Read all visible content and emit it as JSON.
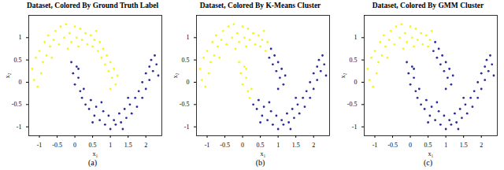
{
  "chart_data": [
    {
      "type": "scatter",
      "title": "Dataset, Colored By Ground Truth Label",
      "caption": "(a)",
      "x_label": "x₁",
      "y_label": "x₂",
      "xlim": [
        -1.3,
        2.45
      ],
      "xticks": [
        -1,
        -0.5,
        0,
        0.5,
        1,
        1.5,
        2
      ],
      "ylim": [
        -1.2,
        1.5
      ],
      "yticks": [
        -1,
        -0.5,
        0,
        0.5,
        1
      ],
      "marker": "circle",
      "series": [
        {
          "color": "#f5f523",
          "x": [
            -1.15,
            -1.05,
            -1.2,
            -0.95,
            -1.1,
            -0.9,
            -1.0,
            -0.8,
            -0.85,
            -0.7,
            -0.75,
            -0.6,
            -0.55,
            -0.45,
            -0.4,
            -0.3,
            -0.25,
            -0.15,
            -0.1,
            0.0,
            0.05,
            0.15,
            0.2,
            0.3,
            0.35,
            0.45,
            0.5,
            0.55,
            0.65,
            0.7,
            0.75,
            0.8,
            0.85,
            0.9,
            0.95,
            1.0,
            1.05,
            1.1,
            1.15,
            1.2,
            -0.65,
            0.6,
            -0.2,
            0.1,
            1.0
          ],
          "y": [
            0.05,
            -0.1,
            0.3,
            0.2,
            0.55,
            0.45,
            0.7,
            0.6,
            0.9,
            0.8,
            1.05,
            0.95,
            1.15,
            0.85,
            1.25,
            1.0,
            1.3,
            1.1,
            0.9,
            1.25,
            1.0,
            1.2,
            0.95,
            1.1,
            0.85,
            1.05,
            0.8,
            0.95,
            0.7,
            0.9,
            0.55,
            0.75,
            0.4,
            0.6,
            0.25,
            0.45,
            0.1,
            0.3,
            -0.05,
            0.15,
            0.55,
            1.15,
            0.75,
            0.8,
            -0.15
          ]
        },
        {
          "color": "#2b2b9c",
          "x": [
            -0.1,
            0.05,
            -0.05,
            0.1,
            0.0,
            0.15,
            0.1,
            0.2,
            0.3,
            0.25,
            0.4,
            0.45,
            0.55,
            0.6,
            0.7,
            0.8,
            0.85,
            0.95,
            1.0,
            1.1,
            1.15,
            1.25,
            1.3,
            1.4,
            1.45,
            1.55,
            1.6,
            1.7,
            1.75,
            1.8,
            1.9,
            1.9,
            2.0,
            2.0,
            2.1,
            2.1,
            2.2,
            2.15,
            2.3,
            2.25,
            0.5,
            1.35,
            1.5,
            0.75,
            2.35
          ],
          "y": [
            0.45,
            0.35,
            0.2,
            0.1,
            -0.05,
            -0.2,
            0.3,
            -0.35,
            -0.5,
            -0.15,
            -0.6,
            -0.4,
            -0.75,
            -0.55,
            -0.85,
            -0.65,
            -0.95,
            -0.75,
            -1.05,
            -0.85,
            -0.95,
            -0.7,
            -0.9,
            -0.6,
            -0.8,
            -0.5,
            -0.7,
            -0.35,
            -0.55,
            -0.2,
            -0.35,
            0.0,
            -0.15,
            0.2,
            0.05,
            0.35,
            0.25,
            0.5,
            0.4,
            0.6,
            -0.9,
            -1.05,
            -0.35,
            -0.45,
            0.15
          ]
        }
      ]
    },
    {
      "type": "scatter",
      "title": "Dataset, Colored By K-Means Cluster",
      "caption": "(b)",
      "x_label": "x₁",
      "y_label": "x₂",
      "xlim": [
        -1.3,
        2.45
      ],
      "xticks": [
        -1,
        -0.5,
        0,
        0.5,
        1,
        1.5,
        2
      ],
      "ylim": [
        -1.2,
        1.5
      ],
      "yticks": [
        -1,
        -0.5,
        0,
        0.5,
        1
      ],
      "marker": "circle",
      "series": [
        {
          "color": "#f5f523",
          "x": [
            -1.15,
            -1.05,
            -1.2,
            -0.95,
            -1.1,
            -0.9,
            -1.0,
            -0.8,
            -0.85,
            -0.7,
            -0.75,
            -0.6,
            -0.55,
            -0.45,
            -0.4,
            -0.3,
            -0.25,
            -0.15,
            -0.1,
            0.0,
            0.05,
            0.15,
            0.2,
            0.3,
            0.35,
            0.45,
            0.5,
            0.55,
            0.65,
            0.7,
            -0.65,
            0.6,
            -0.2,
            0.1,
            -0.1,
            0.05,
            -0.05,
            0.1,
            0.0,
            0.15,
            0.1,
            0.2,
            0.25
          ],
          "y": [
            0.05,
            -0.1,
            0.3,
            0.2,
            0.55,
            0.45,
            0.7,
            0.6,
            0.9,
            0.8,
            1.05,
            0.95,
            1.15,
            0.85,
            1.25,
            1.0,
            1.3,
            1.1,
            0.9,
            1.25,
            1.0,
            1.2,
            0.95,
            1.1,
            0.85,
            1.05,
            0.8,
            0.95,
            0.7,
            0.9,
            0.55,
            1.15,
            0.75,
            0.8,
            0.45,
            0.35,
            0.2,
            0.1,
            -0.05,
            -0.2,
            0.3,
            -0.35,
            -0.15
          ]
        },
        {
          "color": "#2b2b9c",
          "x": [
            0.75,
            0.8,
            0.85,
            0.9,
            0.95,
            1.0,
            1.05,
            1.1,
            1.15,
            1.2,
            1.0,
            0.3,
            0.4,
            0.45,
            0.55,
            0.6,
            0.7,
            0.8,
            0.85,
            0.95,
            1.0,
            1.1,
            1.15,
            1.25,
            1.3,
            1.4,
            1.45,
            1.55,
            1.6,
            1.7,
            1.75,
            1.8,
            1.9,
            1.9,
            2.0,
            2.0,
            2.1,
            2.1,
            2.2,
            2.15,
            2.3,
            2.25,
            0.5,
            1.35,
            1.5,
            0.75,
            2.35
          ],
          "y": [
            0.55,
            0.75,
            0.4,
            0.6,
            0.25,
            0.45,
            0.1,
            0.3,
            -0.05,
            0.15,
            -0.15,
            -0.5,
            -0.6,
            -0.4,
            -0.75,
            -0.55,
            -0.85,
            -0.65,
            -0.95,
            -0.75,
            -1.05,
            -0.85,
            -0.95,
            -0.7,
            -0.9,
            -0.6,
            -0.8,
            -0.5,
            -0.7,
            -0.35,
            -0.55,
            -0.2,
            -0.35,
            0.0,
            -0.15,
            0.2,
            0.05,
            0.35,
            0.25,
            0.5,
            0.4,
            0.6,
            -0.9,
            -1.05,
            -0.35,
            -0.45,
            0.15
          ]
        }
      ]
    },
    {
      "type": "scatter",
      "title": "Dataset, Colored By GMM Cluster",
      "caption": "(c)",
      "x_label": "x₁",
      "y_label": "x₂",
      "xlim": [
        -1.3,
        2.45
      ],
      "xticks": [
        -1,
        -0.5,
        0,
        0.5,
        1,
        1.5,
        2
      ],
      "ylim": [
        -1.2,
        1.5
      ],
      "yticks": [
        -1,
        -0.5,
        0,
        0.5,
        1
      ],
      "marker": "circle",
      "series": [
        {
          "color": "#f5f523",
          "x": [
            -1.15,
            -1.05,
            -1.2,
            -0.95,
            -1.1,
            -0.9,
            -1.0,
            -0.8,
            -0.85,
            -0.7,
            -0.75,
            -0.6,
            -0.55,
            -0.45,
            -0.4,
            -0.3,
            -0.25,
            -0.15,
            -0.1,
            0.0,
            0.05,
            0.15,
            0.2,
            0.3,
            0.35,
            0.45,
            0.5,
            0.55,
            -0.65,
            0.6,
            -0.2,
            0.1
          ],
          "y": [
            0.05,
            -0.1,
            0.3,
            0.2,
            0.55,
            0.45,
            0.7,
            0.6,
            0.9,
            0.8,
            1.05,
            0.95,
            1.15,
            0.85,
            1.25,
            1.0,
            1.3,
            1.1,
            0.9,
            1.25,
            1.0,
            1.2,
            0.95,
            1.1,
            0.85,
            1.05,
            0.8,
            0.95,
            0.55,
            1.15,
            0.75,
            0.8
          ]
        },
        {
          "color": "#2b2b9c",
          "x": [
            0.65,
            0.7,
            0.75,
            0.8,
            0.85,
            0.9,
            0.95,
            1.0,
            1.05,
            1.1,
            1.15,
            1.2,
            1.0,
            -0.1,
            0.05,
            -0.05,
            0.1,
            0.0,
            0.15,
            0.1,
            0.2,
            0.3,
            0.25,
            0.4,
            0.45,
            0.55,
            0.6,
            0.7,
            0.8,
            0.85,
            0.95,
            1.0,
            1.1,
            1.15,
            1.25,
            1.3,
            1.4,
            1.45,
            1.55,
            1.6,
            1.7,
            1.75,
            1.8,
            1.9,
            1.9,
            2.0,
            2.0,
            2.1,
            2.1,
            2.2,
            2.15,
            2.3,
            2.25,
            0.5,
            1.35,
            1.5,
            0.75,
            2.35
          ],
          "y": [
            0.7,
            0.9,
            0.55,
            0.75,
            0.4,
            0.6,
            0.25,
            0.45,
            0.1,
            0.3,
            -0.05,
            0.15,
            -0.15,
            0.45,
            0.35,
            0.2,
            0.1,
            -0.05,
            -0.2,
            0.3,
            -0.35,
            -0.5,
            -0.15,
            -0.6,
            -0.4,
            -0.75,
            -0.55,
            -0.85,
            -0.65,
            -0.95,
            -0.75,
            -1.05,
            -0.85,
            -0.95,
            -0.7,
            -0.9,
            -0.6,
            -0.8,
            -0.5,
            -0.7,
            -0.35,
            -0.55,
            -0.2,
            -0.35,
            0.0,
            -0.15,
            0.2,
            0.05,
            0.35,
            0.25,
            0.5,
            0.4,
            0.6,
            -0.9,
            -1.05,
            -0.35,
            -0.45,
            0.15
          ]
        }
      ]
    }
  ]
}
